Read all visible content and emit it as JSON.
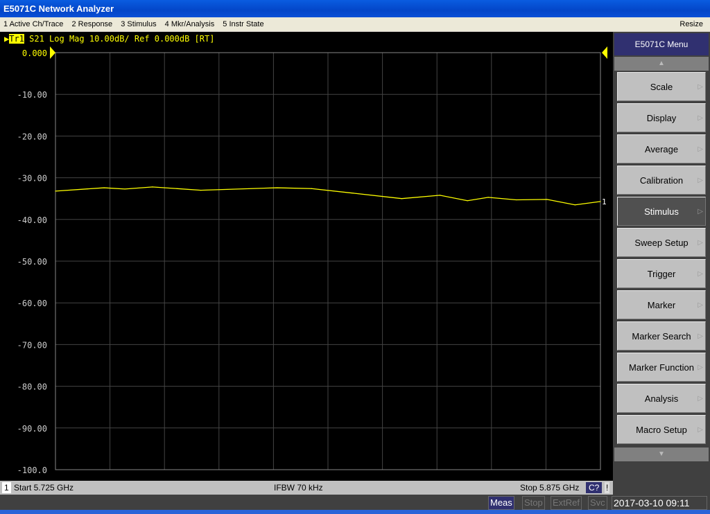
{
  "window": {
    "title": "E5071C Network Analyzer"
  },
  "menu": {
    "items": [
      "1 Active Ch/Trace",
      "2 Response",
      "3 Stimulus",
      "4 Mkr/Analysis",
      "5 Instr State"
    ],
    "resize": "Resize"
  },
  "trace": {
    "label": "Tr1",
    "header": " S21 Log Mag 10.00dB/ Ref 0.000dB [RT]",
    "marker_label": "1",
    "color": "#ffff00"
  },
  "chart_data": {
    "type": "line",
    "xlabel": "",
    "ylabel": "",
    "xlim": [
      5.725,
      5.875
    ],
    "ylim": [
      -100,
      0
    ],
    "grid": true,
    "y_ticks": [
      "0.000",
      "-10.00",
      "-20.00",
      "-30.00",
      "-40.00",
      "-50.00",
      "-60.00",
      "-70.00",
      "-80.00",
      "-90.00",
      "-100.0"
    ],
    "series": [
      {
        "x": [
          5.725,
          5.7384,
          5.7441,
          5.7517,
          5.765,
          5.786,
          5.7955,
          5.807,
          5.8203,
          5.8308,
          5.8384,
          5.8441,
          5.8518,
          5.8603,
          5.868,
          5.875
        ],
        "y": [
          -33.2,
          -32.4,
          -32.7,
          -32.2,
          -33.0,
          -32.4,
          -32.6,
          -33.7,
          -35.0,
          -34.2,
          -35.5,
          -34.7,
          -35.3,
          -35.2,
          -36.5,
          -35.7
        ]
      }
    ]
  },
  "status": {
    "channel": "1",
    "start": "Start 5.725 GHz",
    "ifbw": "IFBW 70 kHz",
    "stop": "Stop 5.875 GHz",
    "cal": "C?",
    "warn": "!"
  },
  "softkeys": {
    "title": "E5071C Menu",
    "items": [
      "Scale",
      "Display",
      "Average",
      "Calibration",
      "Stimulus",
      "Sweep Setup",
      "Trigger",
      "Marker",
      "Marker Search",
      "Marker Function",
      "Analysis",
      "Macro Setup"
    ],
    "selected": "Stimulus"
  },
  "bottom": {
    "meas": "Meas",
    "stop": "Stop",
    "extref": "ExtRef",
    "svc": "Svc",
    "datetime": "2017-03-10 09:11"
  }
}
